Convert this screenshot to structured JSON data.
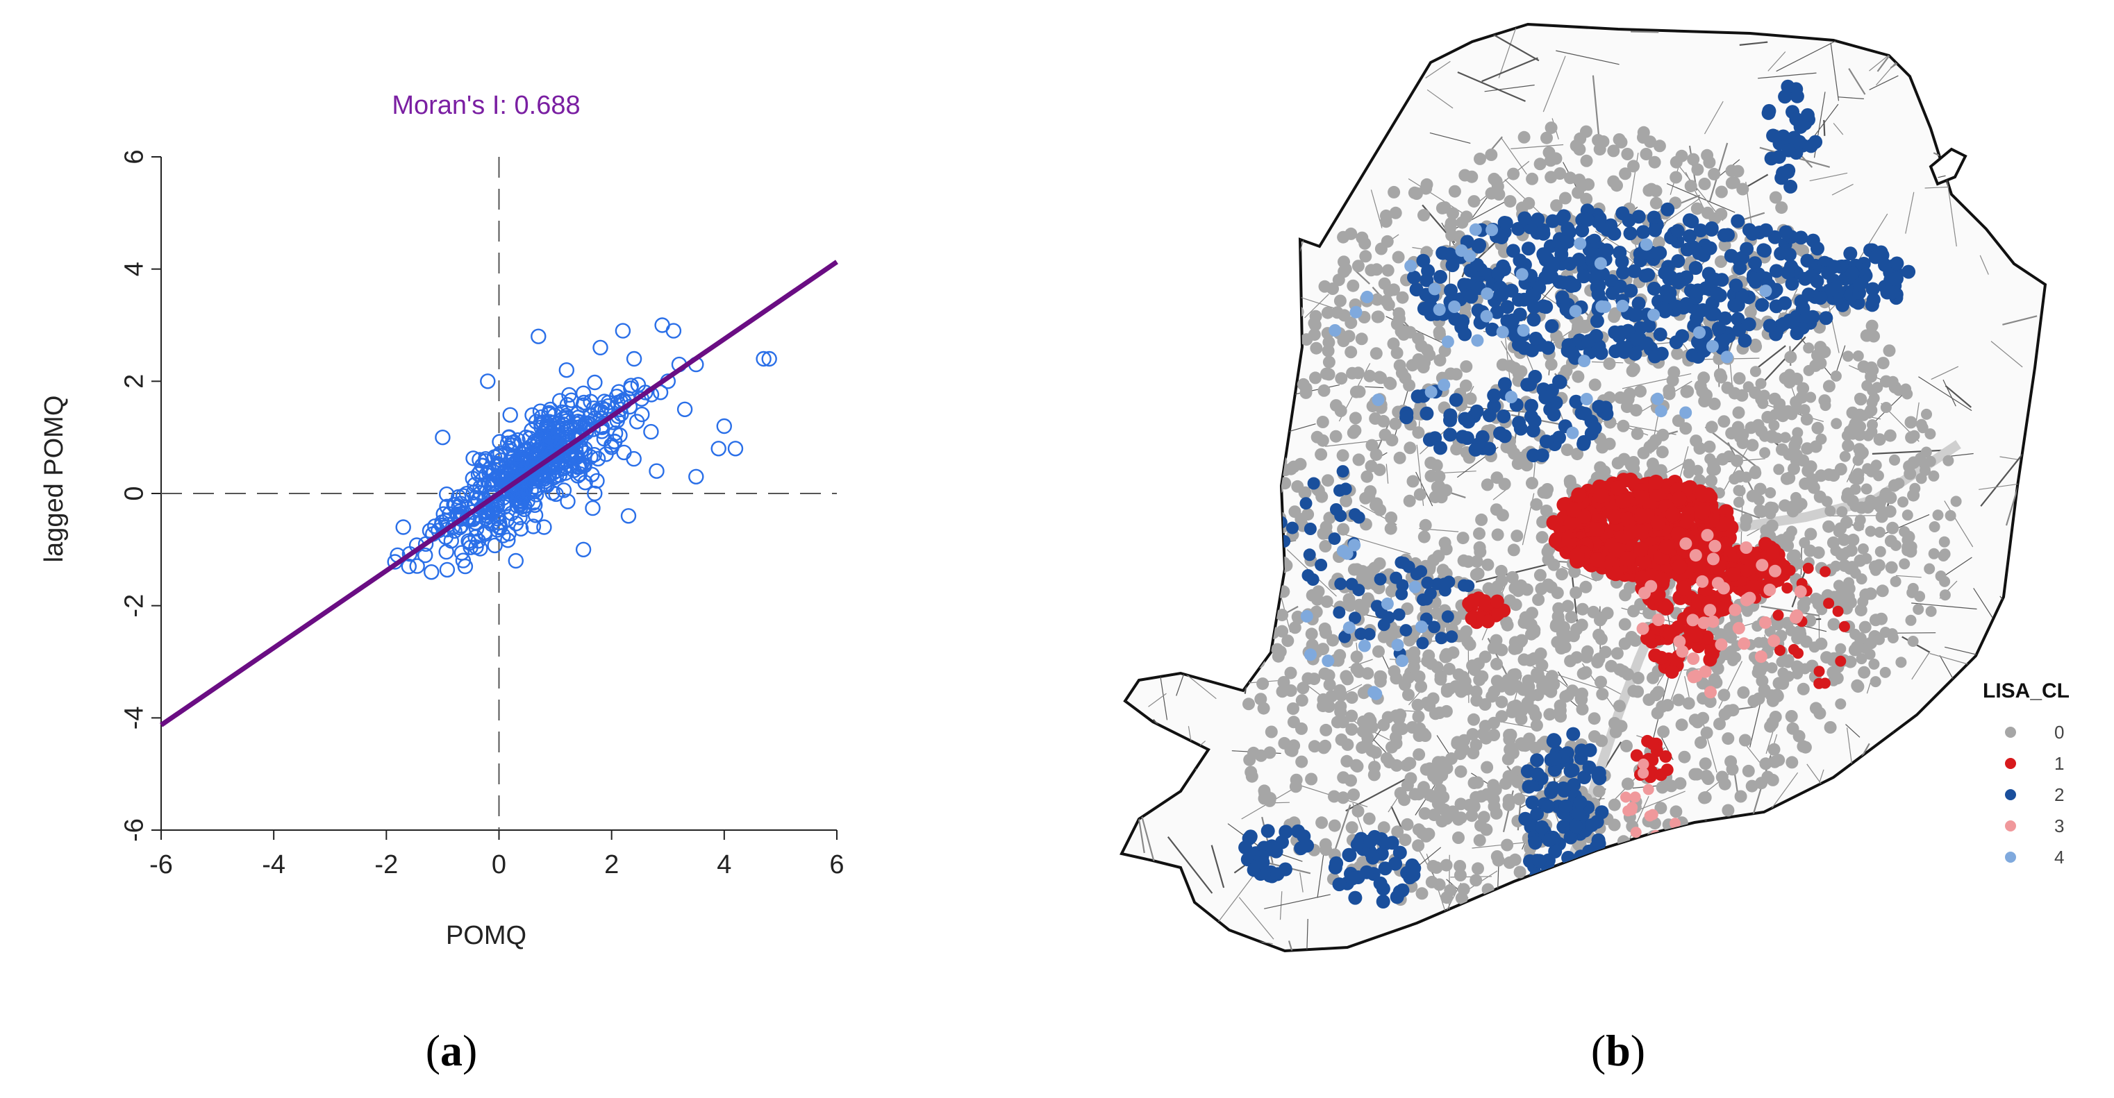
{
  "figure": {
    "panel_a_label": "a",
    "panel_b_label": "b"
  },
  "chart_data": [
    {
      "type": "scatter",
      "title": "Moran's I: 0.688",
      "xlabel": "POMQ",
      "ylabel": "lagged POMQ",
      "xlim": [
        -6,
        6
      ],
      "ylim": [
        -6,
        6
      ],
      "xticks": [
        -6,
        -4,
        -2,
        0,
        2,
        4,
        6
      ],
      "yticks": [
        -6,
        -4,
        -2,
        0,
        2,
        4,
        6
      ],
      "xtick_labels": [
        "-6",
        "-4",
        "-2",
        "0",
        "2",
        "4",
        "6"
      ],
      "ytick_labels": [
        "-6",
        "-4",
        "-2",
        "0",
        "2",
        "4",
        "6"
      ],
      "regression": {
        "slope": 0.688,
        "intercept": 0.0,
        "color": "#6a0d83"
      },
      "point_color": "#2a6fe8",
      "reference_lines": {
        "x": 0,
        "y": 0,
        "style": "dashed"
      },
      "points": [
        [
          4.8,
          2.4
        ],
        [
          4.7,
          2.4
        ],
        [
          4.2,
          0.8
        ],
        [
          3.9,
          0.8
        ],
        [
          3.5,
          0.3
        ],
        [
          4.0,
          1.2
        ],
        [
          3.5,
          2.3
        ],
        [
          3.2,
          2.3
        ],
        [
          2.9,
          3.0
        ],
        [
          3.1,
          2.9
        ],
        [
          2.2,
          2.9
        ],
        [
          1.8,
          2.6
        ],
        [
          0.7,
          2.8
        ],
        [
          -0.2,
          2.0
        ],
        [
          1.5,
          -1.0
        ],
        [
          1.7,
          0.0
        ],
        [
          2.8,
          0.4
        ],
        [
          2.3,
          -0.4
        ],
        [
          -1.0,
          1.0
        ],
        [
          -1.7,
          -0.6
        ],
        [
          -1.8,
          -1.1
        ],
        [
          -1.6,
          -1.3
        ],
        [
          -1.2,
          -1.4
        ],
        [
          -0.6,
          -1.3
        ],
        [
          0.3,
          -1.2
        ],
        [
          2.1,
          1.3
        ],
        [
          1.2,
          2.2
        ],
        [
          2.6,
          1.8
        ],
        [
          3.3,
          1.5
        ],
        [
          -0.8,
          -0.2
        ],
        [
          0.4,
          0.6
        ],
        [
          1.0,
          0.9
        ],
        [
          0.2,
          1.4
        ],
        [
          -0.3,
          0.5
        ],
        [
          2.4,
          2.4
        ],
        [
          1.9,
          0.7
        ],
        [
          -1.3,
          -0.9
        ],
        [
          0.8,
          -0.6
        ],
        [
          2.7,
          1.1
        ],
        [
          3.0,
          2.0
        ]
      ]
    },
    {
      "type": "map",
      "legend_title": "LISA_CL",
      "categories": [
        {
          "label": "0",
          "color": "#a6a6a6"
        },
        {
          "label": "1",
          "color": "#d7191c"
        },
        {
          "label": "2",
          "color": "#1a4f9c"
        },
        {
          "label": "3",
          "color": "#f0989b"
        },
        {
          "label": "4",
          "color": "#7fa9dd"
        }
      ]
    }
  ]
}
